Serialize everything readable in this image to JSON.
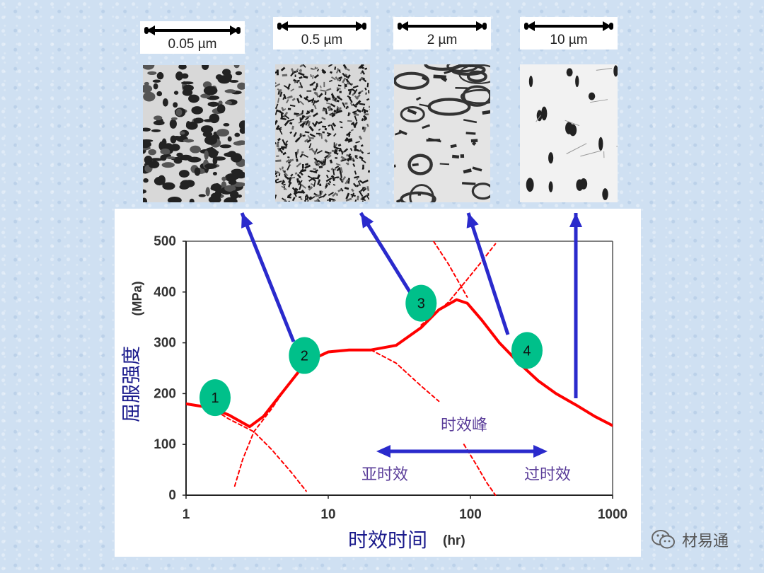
{
  "micrographs": [
    {
      "scale": "0.05 µm",
      "texture": "blotchy"
    },
    {
      "scale": "0.5 µm",
      "texture": "fine"
    },
    {
      "scale": "2 µm",
      "texture": "coarse"
    },
    {
      "scale": "10 µm",
      "texture": "sparse"
    }
  ],
  "watermark": {
    "text": "材易通",
    "icon": "wechat-icon"
  },
  "colors": {
    "curve": "#ff0000",
    "arrow": "#2a2acc",
    "badge": "#00c08a",
    "annotation": "#5a3d99"
  },
  "chart_data": {
    "type": "line",
    "xscale": "log",
    "xlim": [
      1,
      1000
    ],
    "ylim": [
      0,
      500
    ],
    "xticks": [
      "1",
      "10",
      "100",
      "1000"
    ],
    "yticks": [
      "0",
      "100",
      "200",
      "300",
      "400",
      "500"
    ],
    "xlabel": "时效时间",
    "xlabel_unit": "(hr)",
    "ylabel": "屈服强度",
    "ylabel_unit": "(MPa)",
    "grid": false,
    "series": [
      {
        "style": "solid",
        "points": [
          [
            1,
            180
          ],
          [
            1.5,
            172
          ],
          [
            2,
            158
          ],
          [
            2.8,
            135
          ],
          [
            3.5,
            155
          ],
          [
            5,
            210
          ],
          [
            7,
            262
          ],
          [
            10,
            282
          ],
          [
            14,
            286
          ],
          [
            20,
            286
          ],
          [
            30,
            295
          ],
          [
            45,
            330
          ],
          [
            60,
            365
          ],
          [
            80,
            385
          ],
          [
            95,
            378
          ],
          [
            120,
            345
          ],
          [
            160,
            300
          ],
          [
            220,
            260
          ],
          [
            300,
            225
          ],
          [
            400,
            200
          ],
          [
            550,
            178
          ],
          [
            750,
            155
          ],
          [
            1000,
            137
          ]
        ]
      },
      {
        "style": "dashed",
        "points": [
          [
            1.5,
            172
          ],
          [
            2,
            150
          ],
          [
            3,
            125
          ],
          [
            4,
            90
          ],
          [
            5.5,
            45
          ],
          [
            7,
            8
          ]
        ]
      },
      {
        "style": "dashed",
        "points": [
          [
            2.2,
            18
          ],
          [
            2.5,
            70
          ],
          [
            3,
            125
          ],
          [
            4,
            170
          ],
          [
            5,
            210
          ]
        ]
      },
      {
        "style": "dashed",
        "points": [
          [
            20,
            286
          ],
          [
            30,
            260
          ],
          [
            45,
            215
          ],
          [
            60,
            185
          ]
        ]
      },
      {
        "style": "dashed",
        "points": [
          [
            45,
            335
          ],
          [
            70,
            380
          ],
          [
            95,
            425
          ],
          [
            120,
            460
          ],
          [
            150,
            495
          ]
        ]
      },
      {
        "style": "dashed",
        "points": [
          [
            55,
            500
          ],
          [
            70,
            455
          ],
          [
            95,
            390
          ]
        ]
      },
      {
        "style": "dashed",
        "points": [
          [
            90,
            100
          ],
          [
            110,
            60
          ],
          [
            130,
            25
          ],
          [
            150,
            0
          ]
        ]
      }
    ],
    "stages": [
      {
        "label": "1",
        "x": 1.6,
        "y": 192
      },
      {
        "label": "2",
        "x": 6.8,
        "y": 275
      },
      {
        "label": "3",
        "x": 45,
        "y": 378
      },
      {
        "label": "4",
        "x": 250,
        "y": 285
      }
    ],
    "annotations": {
      "peak": "时效峰",
      "under": "亚时效",
      "over": "过时效"
    }
  }
}
